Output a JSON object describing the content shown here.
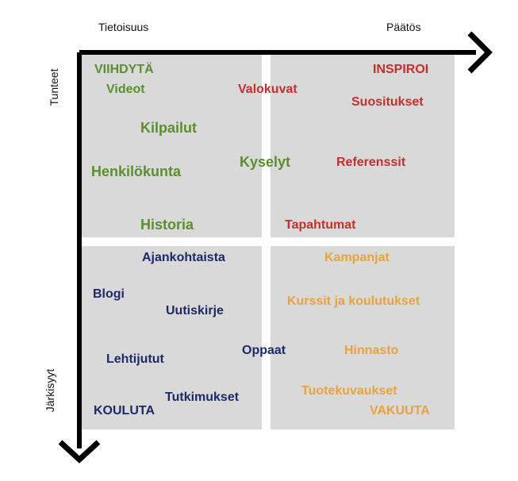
{
  "axes": {
    "top_left": "Tietoisuus",
    "top_right": "Päätös",
    "left_top": "Tunteet",
    "left_bottom": "Järkisyyt"
  },
  "colors": {
    "green": "#5b8f2e",
    "red": "#c62f2b",
    "navy": "#1b2a6b",
    "orange": "#e8a33d",
    "quadrant_fill": "#d9d9d9"
  },
  "quadrants": {
    "top_left": {
      "title": "VIIHDYTÄ",
      "items": [
        "Videot",
        "Kilpailut",
        "Henkilökunta",
        "Historia"
      ]
    },
    "top_right": {
      "title": "INSPIROI",
      "items": [
        "Suositukset",
        "Referenssit",
        "Tapahtumat"
      ]
    },
    "bottom_left": {
      "title": "KOULUTA",
      "items": [
        "Ajankohtaista",
        "Blogi",
        "Uutiskirje",
        "Lehtijutut",
        "Tutkimukset"
      ]
    },
    "bottom_right": {
      "title": "VAKUUTA",
      "items": [
        "Kampanjat",
        "Kurssit ja koulutukset",
        "Hinnasto",
        "Tuotekuvaukset"
      ]
    }
  },
  "center_items": {
    "valokuvat": "Valokuvat",
    "kyselyt": "Kyselyt",
    "oppaat": "Oppaat"
  }
}
